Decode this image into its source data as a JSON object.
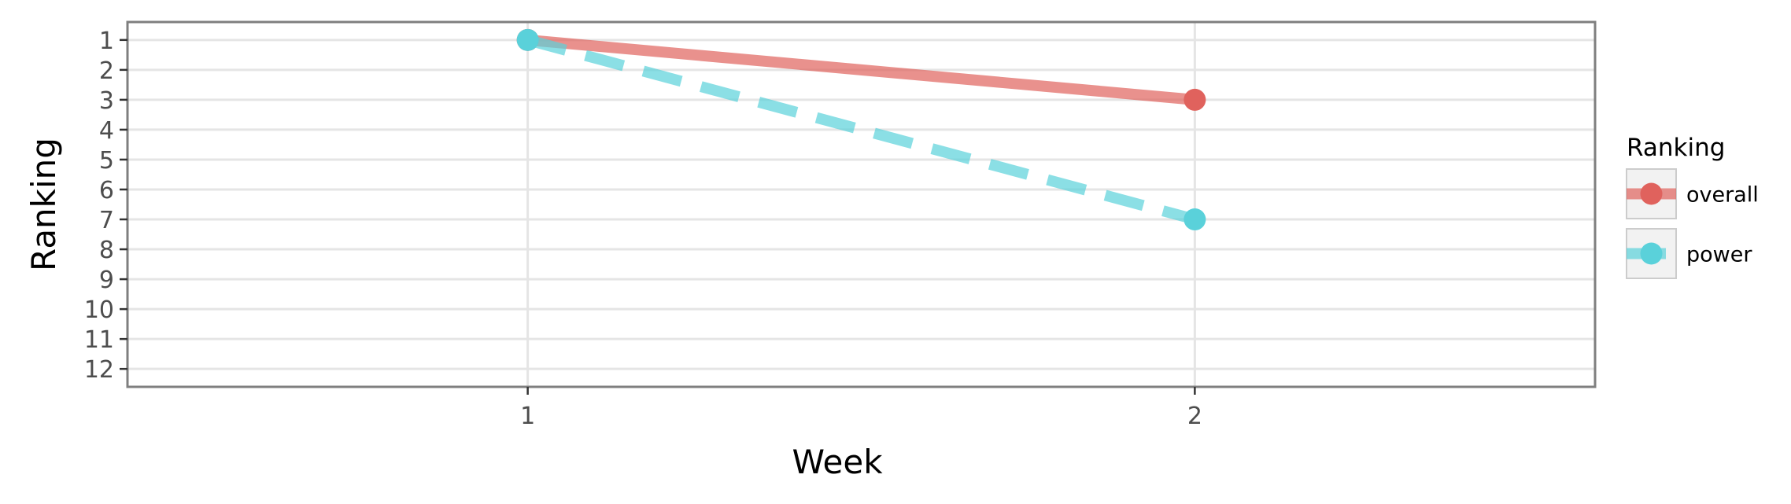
{
  "chart_data": {
    "type": "line",
    "xlabel": "Week",
    "ylabel": "Ranking",
    "x": [
      1,
      2
    ],
    "xticks": [
      1,
      2
    ],
    "xlim": [
      0.4,
      2.6
    ],
    "yticks": [
      1,
      2,
      3,
      4,
      5,
      6,
      7,
      8,
      9,
      10,
      11,
      12
    ],
    "ylim": [
      0.4,
      12.6
    ],
    "y_reversed": true,
    "grid": true,
    "legend": {
      "title": "Ranking",
      "position": "right"
    },
    "series": [
      {
        "name": "overall",
        "values": [
          1,
          3
        ],
        "color": "#e0625d",
        "line_style": "solid"
      },
      {
        "name": "power",
        "values": [
          1,
          7
        ],
        "color": "#5ad1da",
        "line_style": "dashed"
      }
    ]
  }
}
